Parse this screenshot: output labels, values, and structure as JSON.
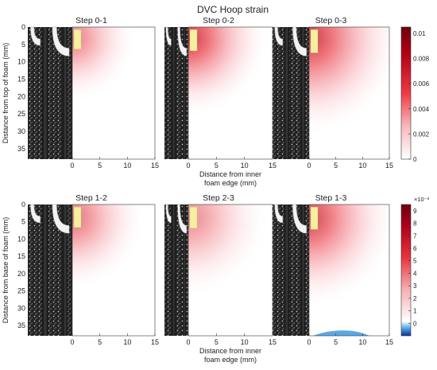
{
  "chart_data": {
    "type": "heatmap",
    "title": "DVC Hoop strain",
    "colors": {
      "low": "#ffffff",
      "high": "#7a0010",
      "negative": "#0b2f9a",
      "neg_light": "#5aa9e6",
      "marker": "#f4f0a0"
    },
    "rows": [
      {
        "ylabel": "Distance from top of foam (mm)",
        "xlabel_line1": "Distance from inner",
        "xlabel_line2": "foam edge (mm)",
        "x_ticks": [
          "0",
          "5",
          "10",
          "15"
        ],
        "y_ticks": [
          "0",
          "5",
          "10",
          "15",
          "20",
          "25",
          "30",
          "35"
        ],
        "xlim": [
          0,
          15
        ],
        "ylim": [
          0,
          38
        ],
        "colorbar": {
          "ticks": [
            "0",
            "0.002",
            "0.004",
            "0.006",
            "0.008",
            "0.01"
          ],
          "range": [
            0,
            0.0105
          ],
          "multiplier": ""
        },
        "panels": [
          {
            "title": "Step 0-1",
            "peak": 0.0032,
            "spread": 0.55
          },
          {
            "title": "Step 0-2",
            "peak": 0.0075,
            "spread": 0.8
          },
          {
            "title": "Step 0-3",
            "peak": 0.0072,
            "spread": 1.1
          }
        ]
      },
      {
        "ylabel": "Distance from base of foam (mm)",
        "xlabel_line1": "Distance from inner",
        "xlabel_line2": "foam edge (mm)",
        "x_ticks": [
          "0",
          "5",
          "10",
          "15"
        ],
        "y_ticks": [
          "0",
          "5",
          "10",
          "15",
          "20",
          "25",
          "30",
          "35"
        ],
        "xlim": [
          0,
          15
        ],
        "ylim": [
          0,
          38
        ],
        "colorbar": {
          "ticks": [
            "0",
            "1",
            "2",
            "3",
            "4",
            "5",
            "6",
            "7",
            "8",
            "9"
          ],
          "range": [
            -1,
            9.5
          ],
          "multiplier": "×10⁻³"
        },
        "panels": [
          {
            "title": "Step 1-2",
            "peak": 3.5,
            "spread": 0.7
          },
          {
            "title": "Step 2-3",
            "peak": 2.2,
            "spread": 0.8
          },
          {
            "title": "Step 1-3",
            "peak": 6.0,
            "spread": 1.0
          }
        ]
      }
    ]
  }
}
